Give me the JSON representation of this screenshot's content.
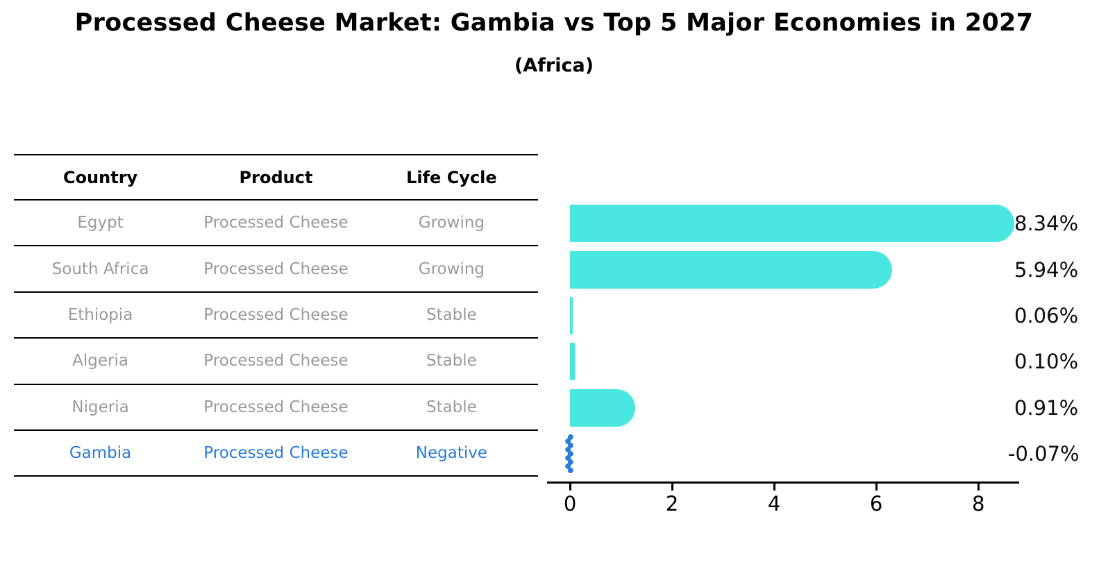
{
  "title": "Processed Cheese Market: Gambia vs Top 5 Major Economies in 2027",
  "subtitle": "(Africa)",
  "table": {
    "headers": [
      "Country",
      "Product",
      "Life Cycle"
    ],
    "rows": [
      {
        "country": "Egypt",
        "product": "Processed Cheese",
        "life_cycle": "Growing",
        "highlight": false
      },
      {
        "country": "South Africa",
        "product": "Processed Cheese",
        "life_cycle": "Growing",
        "highlight": false
      },
      {
        "country": "Ethiopia",
        "product": "Processed Cheese",
        "life_cycle": "Stable",
        "highlight": false
      },
      {
        "country": "Algeria",
        "product": "Processed Cheese",
        "life_cycle": "Stable",
        "highlight": false
      },
      {
        "country": "Nigeria",
        "product": "Processed Cheese",
        "life_cycle": "Stable",
        "highlight": false
      },
      {
        "country": "Gambia",
        "product": "Processed Cheese",
        "life_cycle": "Negative",
        "highlight": true
      }
    ]
  },
  "chart_data": {
    "type": "bar",
    "orientation": "horizontal",
    "title": "Processed Cheese Market: Gambia vs Top 5 Major Economies in 2027",
    "subtitle": "(Africa)",
    "categories": [
      "Egypt",
      "South Africa",
      "Ethiopia",
      "Algeria",
      "Nigeria",
      "Gambia"
    ],
    "values": [
      8.34,
      5.94,
      0.06,
      0.1,
      0.91,
      -0.07
    ],
    "value_labels": [
      "8.34%",
      "5.94%",
      "0.06%",
      "0.10%",
      "0.91%",
      "-0.07%"
    ],
    "xticks": [
      0,
      2,
      4,
      6,
      8
    ],
    "xlim": [
      -0.45,
      8.8
    ],
    "grid": false,
    "legend": false,
    "xlabel": "",
    "ylabel": "",
    "bar_color": "#4AE6E0",
    "highlight_color": "#2B7CD9",
    "highlight_index": 5
  },
  "colors": {
    "background": "#FFFFFF",
    "bar_cyan": "#4AE6E0",
    "gambia_blue": "#2B7CD9",
    "table_text_gray": "#9A9A9A",
    "text_black": "#000000"
  }
}
